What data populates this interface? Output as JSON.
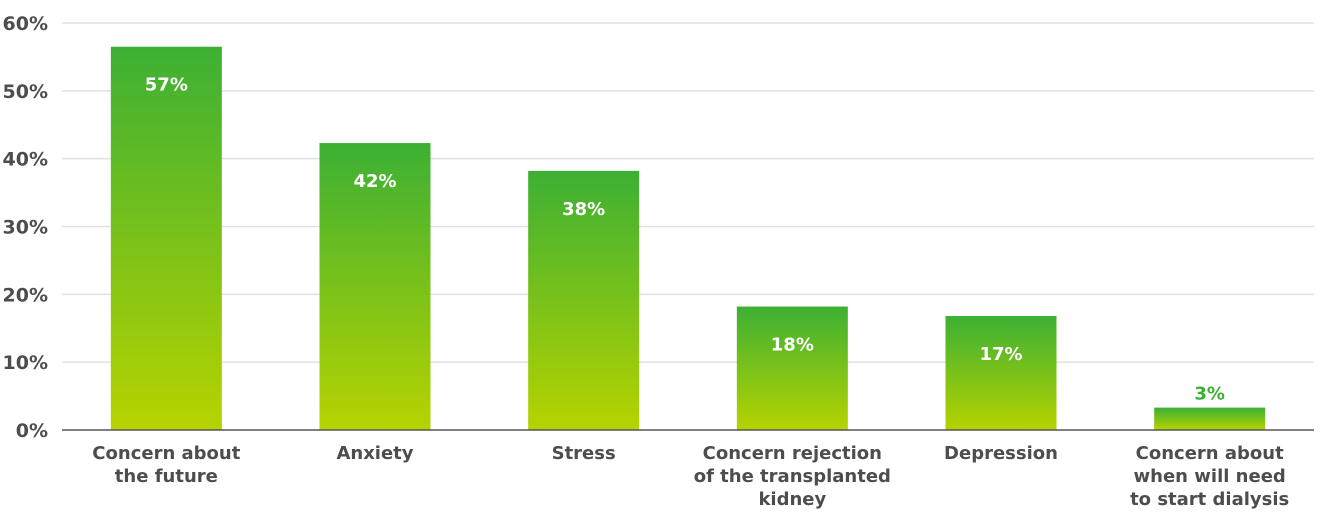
{
  "chart_data": {
    "type": "bar",
    "title": "",
    "xlabel": "",
    "ylabel": "",
    "ylim": [
      0,
      60
    ],
    "yticks": [
      0,
      10,
      20,
      30,
      40,
      50,
      60
    ],
    "ytick_labels": [
      "0%",
      "10%",
      "20%",
      "30%",
      "40%",
      "50%",
      "60%"
    ],
    "grid": true,
    "legend": "none",
    "categories": [
      [
        "Concern about",
        "the future"
      ],
      [
        "Anxiety"
      ],
      [
        "Stress"
      ],
      [
        "Concern rejection",
        "of the transplanted",
        "kidney"
      ],
      [
        "Depression"
      ],
      [
        "Concern about",
        "when will need",
        "to start dialysis"
      ]
    ],
    "values": [
      56.5,
      42.3,
      38.2,
      18.2,
      16.8,
      3.3
    ],
    "value_labels": [
      "57%",
      "42%",
      "38%",
      "18%",
      "17%",
      "3%"
    ],
    "colors": {
      "bar_top": "#3cb034",
      "bar_bottom": "#b7d300",
      "label_inside": "#ffffff",
      "label_outside": "#3cb034",
      "grid": "#e0e0e0",
      "axis": "#555555",
      "text": "#4d4d4d"
    }
  }
}
